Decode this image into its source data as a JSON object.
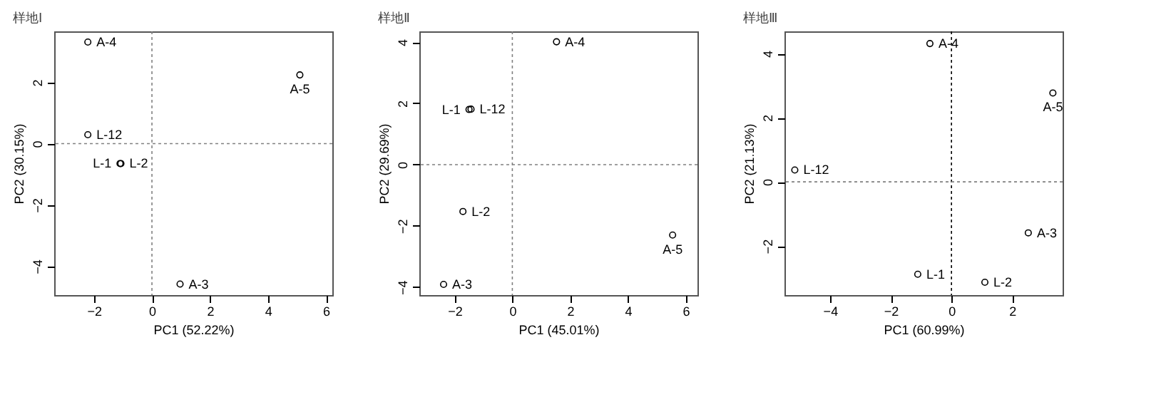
{
  "chart_data": [
    {
      "type": "scatter",
      "title": "样地Ⅰ",
      "xlabel": "PC1  (52.22%)",
      "ylabel": "PC2  (30.15%)",
      "xlim": [
        -3.37,
        6.22
      ],
      "ylim": [
        -4.94,
        3.66
      ],
      "xticks": [
        -2,
        0,
        2,
        4,
        6
      ],
      "yticks": [
        -4,
        -2,
        0,
        2
      ],
      "marker": "circle",
      "grid": false,
      "ref_lines": [
        {
          "axis": "x",
          "value": 0,
          "line_style": "dotted",
          "color": "#808080"
        },
        {
          "axis": "y",
          "value": 0,
          "line_style": "dotted",
          "color": "#808080"
        }
      ],
      "series": [
        {
          "name": "A-4",
          "color": "#000000",
          "x": [
            -2.21
          ],
          "values": [
            3.31
          ]
        },
        {
          "name": "A-5",
          "color": "#000000",
          "x": [
            5.1
          ],
          "values": [
            2.24
          ]
        },
        {
          "name": "L-12",
          "color": "#000000",
          "x": [
            -2.21
          ],
          "values": [
            0.29
          ]
        },
        {
          "name": "L-1",
          "color": "#000000",
          "x": [
            -1.1
          ],
          "values": [
            -0.65
          ]
        },
        {
          "name": "L-2",
          "color": "#000000",
          "x": [
            -1.07
          ],
          "values": [
            -0.65
          ]
        },
        {
          "name": "A-3",
          "color": "#000000",
          "x": [
            0.97
          ],
          "values": [
            -4.58
          ]
        }
      ]
    },
    {
      "type": "scatter",
      "title": "样地Ⅱ",
      "xlabel": "PC1  (45.01%)",
      "ylabel": "PC2  (29.69%)",
      "xlim": [
        -3.22,
        6.41
      ],
      "ylim": [
        -4.26,
        4.35
      ],
      "xticks": [
        -2,
        0,
        2,
        4,
        6
      ],
      "yticks": [
        -4,
        -2,
        0,
        2,
        4
      ],
      "marker": "circle",
      "grid": false,
      "ref_lines": [
        {
          "axis": "x",
          "value": 0,
          "line_style": "dotted",
          "color": "#808080"
        },
        {
          "axis": "y",
          "value": 0,
          "line_style": "dotted",
          "color": "#808080"
        }
      ],
      "series": [
        {
          "name": "A-4",
          "color": "#000000",
          "x": [
            1.53
          ],
          "values": [
            4.01
          ]
        },
        {
          "name": "L-1",
          "color": "#000000",
          "x": [
            -1.5
          ],
          "values": [
            1.8
          ]
        },
        {
          "name": "L-12",
          "color": "#000000",
          "x": [
            -1.43
          ],
          "values": [
            1.81
          ]
        },
        {
          "name": "L-2",
          "color": "#000000",
          "x": [
            -1.71
          ],
          "values": [
            -1.53
          ]
        },
        {
          "name": "A-5",
          "color": "#000000",
          "x": [
            5.55
          ],
          "values": [
            -2.3
          ]
        },
        {
          "name": "A-3",
          "color": "#000000",
          "x": [
            -2.38
          ],
          "values": [
            -3.91
          ]
        }
      ]
    },
    {
      "type": "scatter",
      "title": "样地Ⅲ",
      "xlabel": "PC1  (60.99%)",
      "ylabel": "PC2  (21.13%)",
      "xlim": [
        -5.5,
        3.66
      ],
      "ylim": [
        -3.53,
        4.69
      ],
      "xticks": [
        -4,
        -2,
        0,
        2
      ],
      "yticks": [
        -2,
        0,
        2,
        4
      ],
      "marker": "circle",
      "grid": false,
      "ref_lines": [
        {
          "axis": "x",
          "value": 0,
          "line_style": "dotted",
          "color": "#000000"
        },
        {
          "axis": "y",
          "value": 0,
          "line_style": "dotted",
          "color": "#808080"
        }
      ],
      "series": [
        {
          "name": "A-4",
          "color": "#000000",
          "x": [
            -0.71
          ],
          "values": [
            4.31
          ]
        },
        {
          "name": "A-5",
          "color": "#000000",
          "x": [
            3.34
          ],
          "values": [
            2.77
          ]
        },
        {
          "name": "L-12",
          "color": "#000000",
          "x": [
            -5.16
          ],
          "values": [
            0.37
          ]
        },
        {
          "name": "A-3",
          "color": "#000000",
          "x": [
            2.53
          ],
          "values": [
            -1.59
          ]
        },
        {
          "name": "L-1",
          "color": "#000000",
          "x": [
            -1.11
          ],
          "values": [
            -2.88
          ]
        },
        {
          "name": "L-2",
          "color": "#000000",
          "x": [
            1.1
          ],
          "values": [
            -3.13
          ]
        }
      ]
    }
  ]
}
